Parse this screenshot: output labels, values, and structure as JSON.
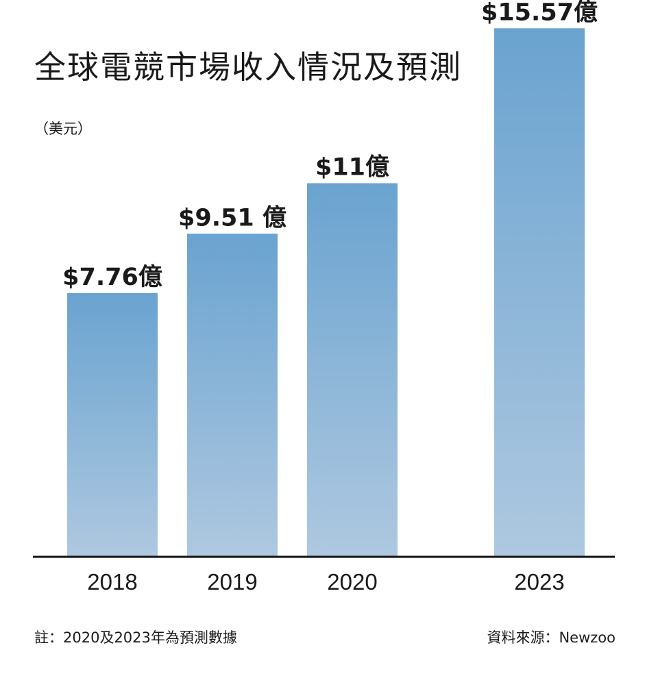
{
  "chart_data": {
    "type": "bar",
    "title": "全球電競市場收入情況及預測",
    "unit_label": "（美元）",
    "categories": [
      "2018",
      "2019",
      "2020",
      "2023"
    ],
    "values": [
      7.76,
      9.51,
      11,
      15.57
    ],
    "data_labels": [
      "$7.76億",
      "$9.51 億",
      "$11億",
      "$15.57億"
    ],
    "ylim": [
      0,
      16
    ],
    "grid": false,
    "legend": "none",
    "colors": {
      "bar_top": "#6aa3d0",
      "bar_bottom": "#aec8e0",
      "baseline": "#111111",
      "text": "#1a1a1a"
    }
  },
  "footnote": "註：2020及2023年為預測數據",
  "source": "資料來源：Newzoo"
}
